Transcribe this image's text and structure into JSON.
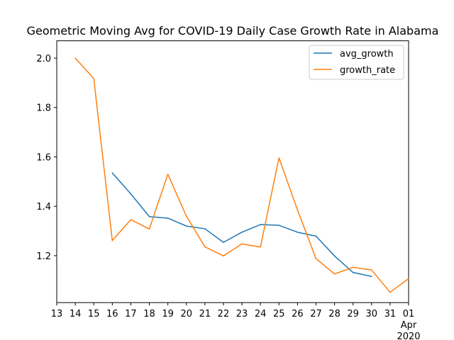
{
  "chart_data": {
    "type": "line",
    "title": "Geometric Moving Avg for COVID-19 Daily Case Growth Rate in Alabama",
    "xlabel": "",
    "ylabel": "",
    "x_tick_labels": [
      "13",
      "14",
      "15",
      "16",
      "17",
      "18",
      "19",
      "20",
      "21",
      "22",
      "23",
      "24",
      "25",
      "26",
      "27",
      "28",
      "29",
      "30",
      "31",
      "01"
    ],
    "x_tick_sublabels": [
      "Apr",
      "2020"
    ],
    "x": [
      "2020-03-13",
      "2020-03-14",
      "2020-03-15",
      "2020-03-16",
      "2020-03-17",
      "2020-03-18",
      "2020-03-19",
      "2020-03-20",
      "2020-03-21",
      "2020-03-22",
      "2020-03-23",
      "2020-03-24",
      "2020-03-25",
      "2020-03-26",
      "2020-03-27",
      "2020-03-28",
      "2020-03-29",
      "2020-03-30",
      "2020-03-31",
      "2020-04-01"
    ],
    "xlim": [
      "2020-03-13",
      "2020-04-01"
    ],
    "ylim": [
      1.01,
      2.07
    ],
    "y_ticks": [
      "1.2",
      "1.4",
      "1.6",
      "1.8",
      "2.0"
    ],
    "y_tick_values": [
      1.2,
      1.4,
      1.6,
      1.8,
      2.0
    ],
    "grid": false,
    "legend_position": "top-right",
    "series": [
      {
        "name": "avg_growth",
        "color": "#1f77b4",
        "values": [
          null,
          null,
          null,
          1.535,
          1.45,
          1.358,
          1.352,
          1.32,
          1.309,
          1.254,
          1.295,
          1.326,
          1.323,
          1.295,
          1.279,
          1.199,
          1.132,
          1.116,
          null,
          null
        ]
      },
      {
        "name": "growth_rate",
        "color": "#ff7f0e",
        "values": [
          null,
          2.0,
          1.917,
          1.261,
          1.346,
          1.308,
          1.53,
          1.36,
          1.236,
          1.199,
          1.248,
          1.235,
          1.596,
          1.385,
          1.188,
          1.126,
          1.153,
          1.142,
          1.052,
          1.107
        ]
      }
    ]
  }
}
